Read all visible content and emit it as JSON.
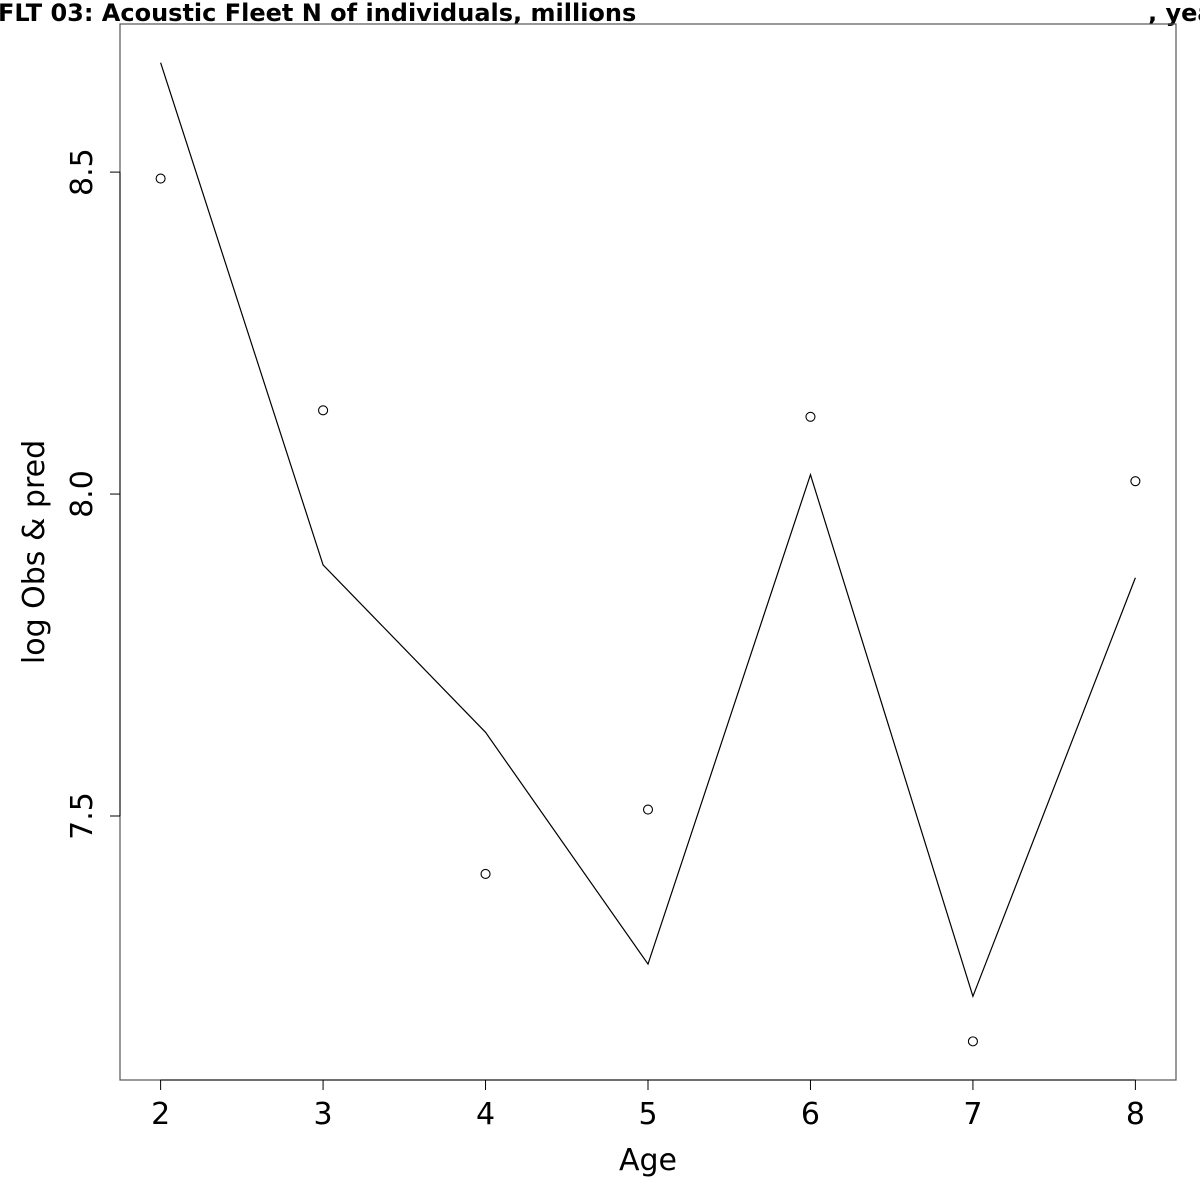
{
  "chart_data": {
    "type": "line",
    "title_left": "FLT 03: Acoustic Fleet   N of individuals, millions",
    "title_right": ", yea",
    "xlabel": "Age",
    "ylabel": "log Obs & pred",
    "x": [
      2,
      3,
      4,
      5,
      6,
      7,
      8
    ],
    "xlim": [
      1.75,
      8.25
    ],
    "ylim": [
      7.09,
      8.73
    ],
    "x_ticks": [
      2,
      3,
      4,
      5,
      6,
      7,
      8
    ],
    "y_ticks": [
      7.5,
      8.0,
      8.5
    ],
    "x_tick_labels": [
      "2",
      "3",
      "4",
      "5",
      "6",
      "7",
      "8"
    ],
    "y_tick_labels": [
      "7.5",
      "8.0",
      "8.5"
    ],
    "series": [
      {
        "type": "line",
        "values": [
          8.67,
          7.89,
          7.63,
          7.27,
          8.03,
          7.22,
          7.87
        ]
      },
      {
        "type": "scatter",
        "marker": "open-circle",
        "values": [
          8.49,
          8.13,
          7.41,
          7.51,
          8.12,
          7.15,
          8.02
        ]
      }
    ],
    "grid": false,
    "colors": {
      "line": "#000000",
      "points": "#000000",
      "frame": "#555555"
    }
  }
}
